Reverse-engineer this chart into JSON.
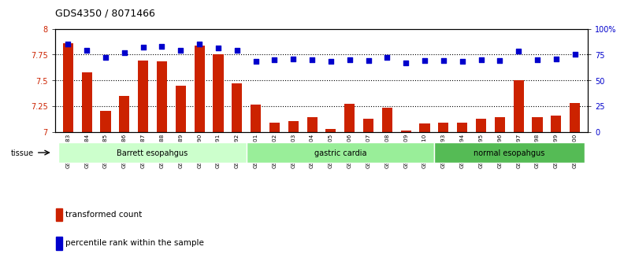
{
  "title": "GDS4350 / 8071466",
  "samples": [
    "GSM851983",
    "GSM851984",
    "GSM851985",
    "GSM851986",
    "GSM851987",
    "GSM851988",
    "GSM851989",
    "GSM851990",
    "GSM851991",
    "GSM851992",
    "GSM852001",
    "GSM852002",
    "GSM852003",
    "GSM852004",
    "GSM852005",
    "GSM852006",
    "GSM852007",
    "GSM852008",
    "GSM852009",
    "GSM852010",
    "GSM851993",
    "GSM851994",
    "GSM851995",
    "GSM851996",
    "GSM851997",
    "GSM851998",
    "GSM851999",
    "GSM852000"
  ],
  "bar_values": [
    7.86,
    7.58,
    7.2,
    7.35,
    7.69,
    7.68,
    7.45,
    7.84,
    7.75,
    7.47,
    7.26,
    7.09,
    7.1,
    7.14,
    7.03,
    7.27,
    7.13,
    7.23,
    7.01,
    7.08,
    7.09,
    7.09,
    7.13,
    7.14,
    7.5,
    7.14,
    7.16,
    7.28
  ],
  "dot_values": [
    85,
    79,
    72,
    77,
    82,
    83,
    79,
    85,
    81,
    79,
    68,
    70,
    71,
    70,
    68,
    70,
    69,
    72,
    67,
    69,
    69,
    68,
    70,
    69,
    78,
    70,
    71,
    75
  ],
  "groups": [
    {
      "label": "Barrett esopahgus",
      "start": 0,
      "end": 9,
      "color": "#ccffcc"
    },
    {
      "label": "gastric cardia",
      "start": 10,
      "end": 19,
      "color": "#99ee99"
    },
    {
      "label": "normal esopahgus",
      "start": 20,
      "end": 27,
      "color": "#55bb55"
    }
  ],
  "bar_color": "#cc2200",
  "dot_color": "#0000cc",
  "ylim_left": [
    7.0,
    8.0
  ],
  "ylim_right": [
    0,
    100
  ],
  "yticks_left": [
    7.0,
    7.25,
    7.5,
    7.75,
    8.0
  ],
  "yticks_right": [
    0,
    25,
    50,
    75,
    100
  ],
  "ytick_labels_right": [
    "0",
    "25",
    "50",
    "75",
    "100%"
  ],
  "hlines": [
    7.25,
    7.5,
    7.75
  ],
  "plot_bg": "#ffffff"
}
